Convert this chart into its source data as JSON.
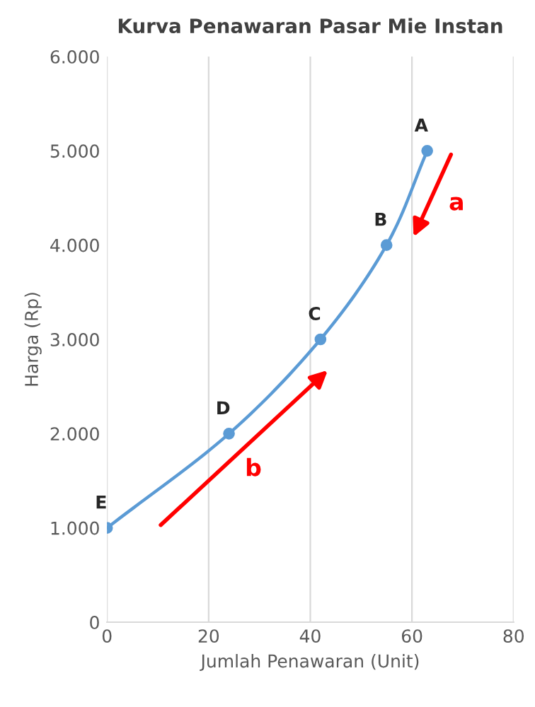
{
  "chart_data": {
    "type": "line",
    "title": "Kurva Penawaran Pasar Mie Instan",
    "xlabel": "Jumlah Penawaran (Unit)",
    "ylabel": "Harga (Rp)",
    "x": [
      0,
      24,
      42,
      55,
      63
    ],
    "series": [
      {
        "color": "#5b9bd5",
        "values": [
          1000,
          2000,
          3000,
          4000,
          5000
        ]
      }
    ],
    "marker": "circle",
    "line_style": "solid",
    "grid": "x",
    "legend": false,
    "xlim": [
      0,
      80
    ],
    "xticks": [
      0,
      20,
      40,
      60,
      80
    ],
    "ylim": [
      0,
      6000
    ],
    "yticks": [
      {
        "value": 0,
        "label": "0"
      },
      {
        "value": 1000,
        "label": "1.000"
      },
      {
        "value": 2000,
        "label": "2.000"
      },
      {
        "value": 3000,
        "label": "3.000"
      },
      {
        "value": 4000,
        "label": "4.000"
      },
      {
        "value": 5000,
        "label": "5.000"
      },
      {
        "value": 6000,
        "label": "6.000"
      }
    ],
    "annotations": [
      {
        "text": "E",
        "x": 0,
        "y": 1000
      },
      {
        "text": "D",
        "x": 24,
        "y": 2000
      },
      {
        "text": "C",
        "x": 42,
        "y": 3000
      },
      {
        "text": "B",
        "x": 55,
        "y": 4000
      },
      {
        "text": "A",
        "x": 63,
        "y": 5000
      },
      "a",
      "b"
    ]
  }
}
